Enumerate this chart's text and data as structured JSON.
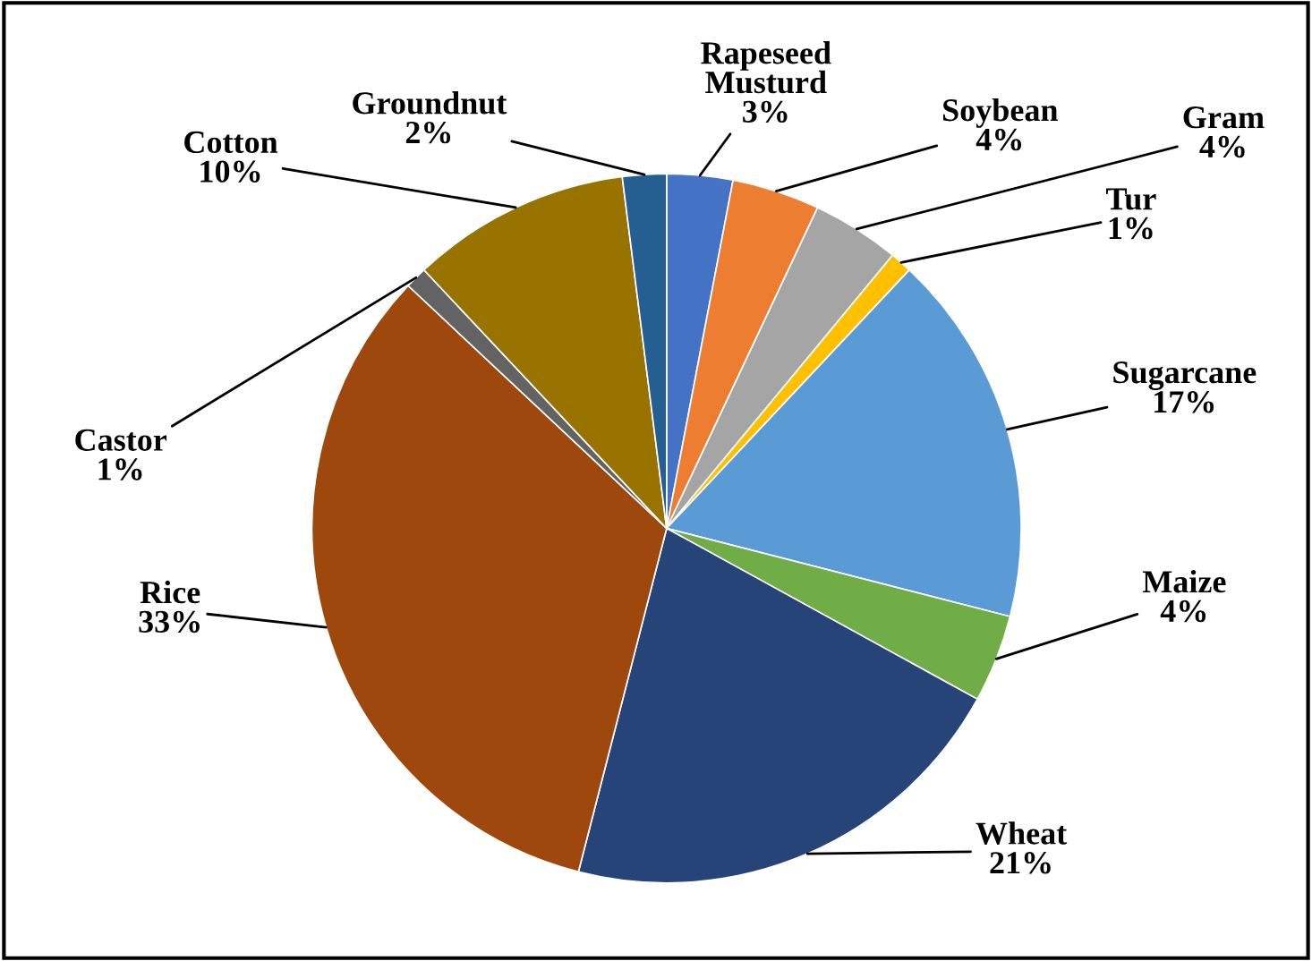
{
  "chart_data": {
    "type": "pie",
    "categories": [
      "Rapeseed\nMusturd",
      "Soybean",
      "Gram",
      "Tur",
      "Sugarcane",
      "Maize",
      "Wheat",
      "Rice",
      "Castor",
      "Cotton",
      "Groundnut"
    ],
    "values": [
      3,
      4,
      4,
      1,
      17,
      4,
      21,
      33,
      1,
      10,
      2
    ],
    "colors": [
      "#4472c4",
      "#ed7d31",
      "#a5a5a5",
      "#ffc000",
      "#5b9bd5",
      "#70ad47",
      "#264478",
      "#9e480e",
      "#636363",
      "#997300",
      "#255e91"
    ],
    "value_labels": [
      "3%",
      "4%",
      "4%",
      "1%",
      "17%",
      "4%",
      "21%",
      "33%",
      "1%",
      "10%",
      "2%"
    ],
    "legend": false
  }
}
